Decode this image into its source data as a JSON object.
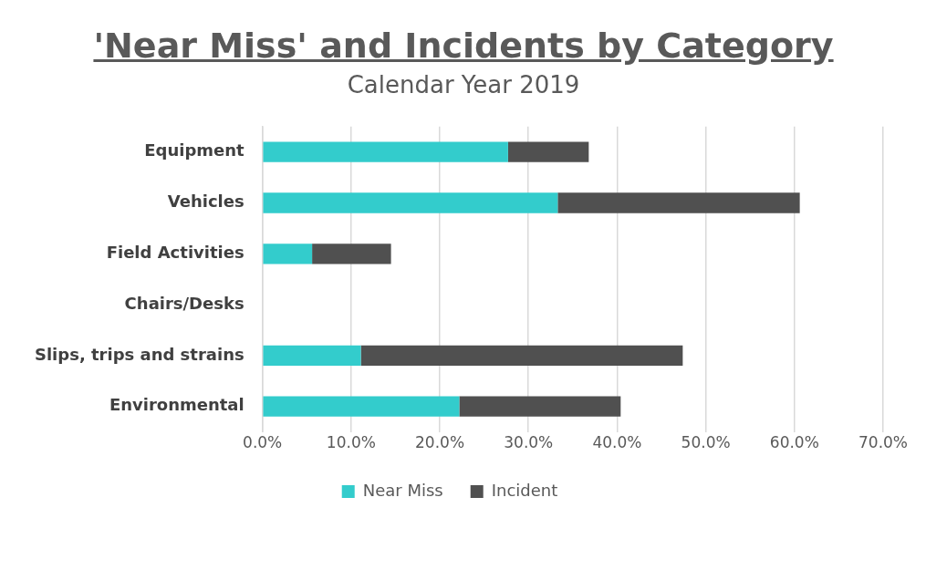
{
  "chart_data": {
    "type": "bar",
    "title": "'Near Miss' and Incidents by Category",
    "subtitle": "Calendar Year 2019",
    "orientation": "horizontal",
    "stacked": true,
    "categories": [
      "Equipment",
      "Vehicles",
      "Field Activities",
      "Chairs/Desks",
      "Slips, trips and strains",
      "Environmental"
    ],
    "series": [
      {
        "name": "Near Miss",
        "color": "#33cccc",
        "values": [
          27.7,
          33.3,
          5.6,
          0,
          11.1,
          22.2
        ]
      },
      {
        "name": "Incident",
        "color": "#505050",
        "values": [
          9.1,
          27.3,
          8.9,
          0,
          36.3,
          18.2
        ]
      }
    ],
    "xlim": [
      0,
      70
    ],
    "xticks": [
      {
        "value": 0,
        "label": "0.0%"
      },
      {
        "value": 10,
        "label": "10.0%"
      },
      {
        "value": 20,
        "label": "20.0%"
      },
      {
        "value": 30,
        "label": "30.0%"
      },
      {
        "value": 40,
        "label": "40.0%"
      },
      {
        "value": 50,
        "label": "50.0%"
      },
      {
        "value": 60,
        "label": "60.0%"
      },
      {
        "value": 70,
        "label": "70.0%"
      }
    ],
    "grid": "x",
    "legend": "bottom"
  }
}
